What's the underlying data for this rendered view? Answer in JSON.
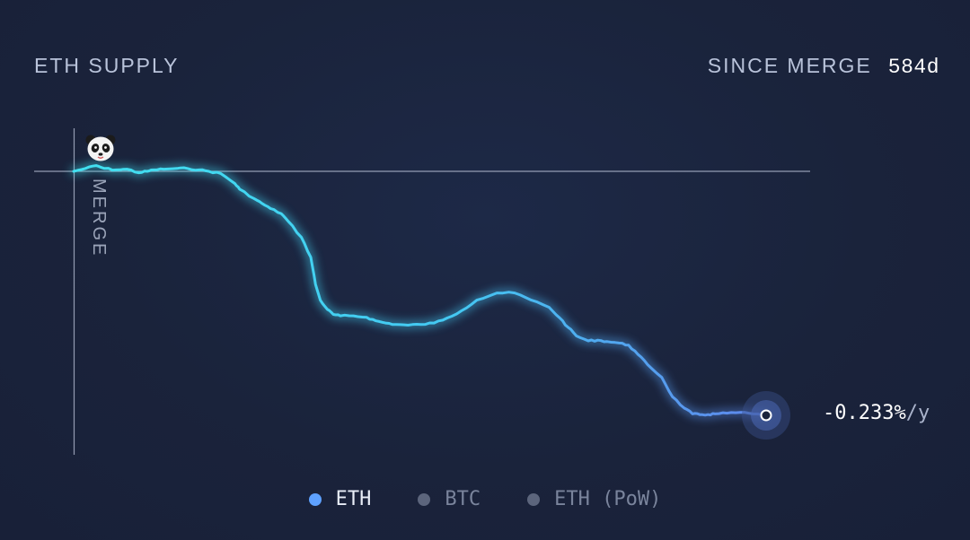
{
  "header": {
    "title": "ETH SUPPLY",
    "since_label": "SINCE MERGE",
    "since_value": "584d"
  },
  "rate": {
    "value": "-0.233%",
    "unit": "/y"
  },
  "merge_marker": {
    "label": "MERGE",
    "icon": "panda-icon"
  },
  "legend": [
    {
      "label": "ETH",
      "color": "#5ea1ff",
      "active": true
    },
    {
      "label": "BTC",
      "color": "#5c657c",
      "active": false
    },
    {
      "label": "ETH (PoW)",
      "color": "#5c657c",
      "active": false
    }
  ],
  "colors": {
    "line_start": "#41e1f0",
    "line_end": "#5f86ec",
    "axis": "#aab2c8"
  },
  "chart_data": {
    "type": "line",
    "title": "ETH SUPPLY",
    "xlabel": "",
    "ylabel": "",
    "xlim": [
      0,
      584
    ],
    "ylim": [
      -0.45,
      0.02
    ],
    "grid": false,
    "legend_position": "bottom-center",
    "series": [
      {
        "name": "ETH",
        "x": [
          0,
          10,
          19,
          26,
          36,
          45,
          55,
          62,
          67,
          76,
          87,
          96,
          106,
          114,
          124,
          136,
          140,
          152,
          159,
          166,
          175,
          181,
          192,
          200,
          204,
          208,
          214,
          219,
          225,
          236,
          247,
          255,
          263,
          272,
          282,
          293,
          304,
          315,
          327,
          340,
          357,
          372,
          386,
          401,
          410,
          417,
          424,
          434,
          442,
          450,
          460,
          468,
          476,
          484,
          496,
          505,
          515,
          522,
          528,
          535,
          541,
          551,
          562,
          573,
          584
        ],
        "y": [
          0.0,
          0.004,
          0.008,
          0.004,
          0.002,
          0.003,
          -0.002,
          0.0,
          0.002,
          0.003,
          0.004,
          0.004,
          0.002,
          0.0,
          -0.003,
          -0.017,
          -0.025,
          -0.038,
          -0.045,
          -0.052,
          -0.059,
          -0.07,
          -0.092,
          -0.12,
          -0.158,
          -0.18,
          -0.193,
          -0.2,
          -0.202,
          -0.202,
          -0.204,
          -0.209,
          -0.212,
          -0.214,
          -0.215,
          -0.214,
          -0.212,
          -0.205,
          -0.195,
          -0.18,
          -0.17,
          -0.17,
          -0.18,
          -0.19,
          -0.205,
          -0.218,
          -0.23,
          -0.237,
          -0.236,
          -0.238,
          -0.24,
          -0.243,
          -0.256,
          -0.27,
          -0.288,
          -0.315,
          -0.331,
          -0.339,
          -0.34,
          -0.34,
          -0.339,
          -0.338,
          -0.337,
          -0.339,
          -0.341
        ]
      }
    ]
  }
}
